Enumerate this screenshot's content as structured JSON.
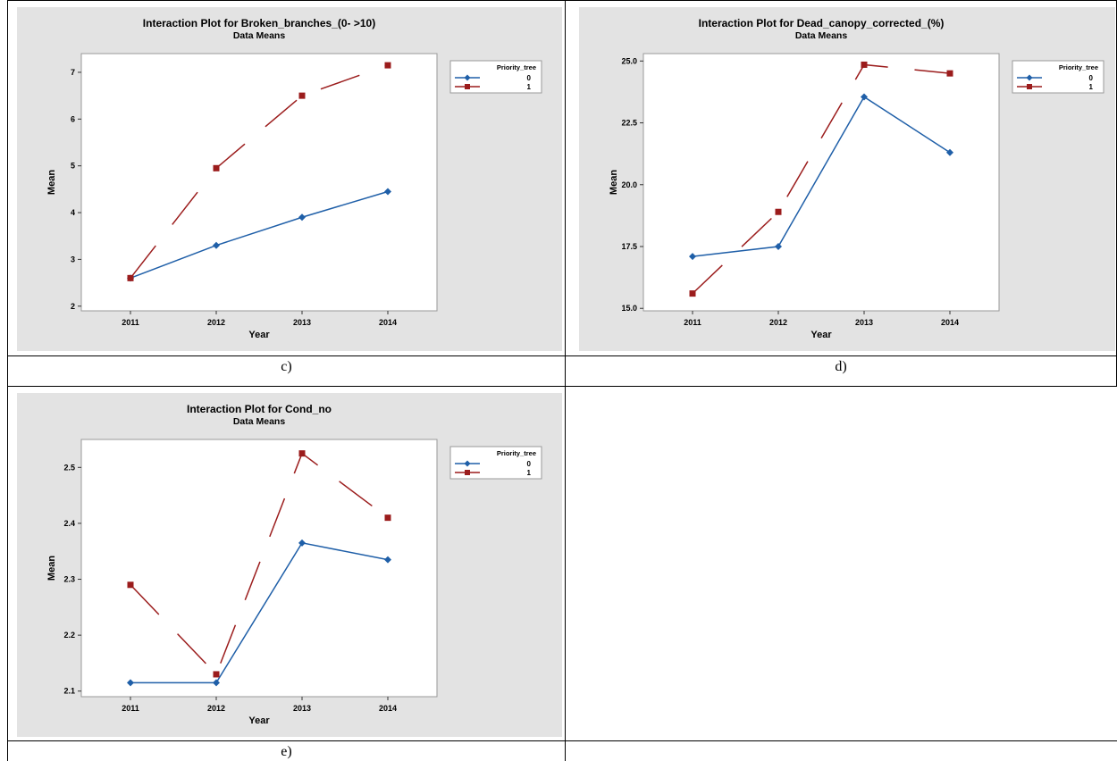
{
  "captions": {
    "c": "c)",
    "d": "d)",
    "e": "e)"
  },
  "chart_data": [
    {
      "type": "line",
      "title": "Interaction Plot for Broken_branches_(0- >10)",
      "subtitle": "Data Means",
      "xlabel": "Year",
      "ylabel": "Mean",
      "categories": [
        "2011",
        "2012",
        "2013",
        "2014"
      ],
      "ylim": [
        1.9,
        7.4
      ],
      "yticks": [
        2,
        3,
        4,
        5,
        6,
        7
      ],
      "ytick_labels": [
        "2",
        "3",
        "4",
        "5",
        "6",
        "7"
      ],
      "legend": {
        "title": "Priority_tree",
        "placement": "top-right"
      },
      "grid": false,
      "series": [
        {
          "name": "0",
          "values": [
            2.6,
            3.3,
            3.9,
            4.45
          ],
          "color": "#1f5fa8",
          "marker": "diamond",
          "line": "solid"
        },
        {
          "name": "1",
          "values": [
            2.6,
            4.95,
            6.5,
            7.15
          ],
          "color": "#9b1c1c",
          "marker": "square",
          "line": "dashed"
        }
      ]
    },
    {
      "type": "line",
      "title": "Interaction Plot for Dead_canopy_corrected_(%)",
      "subtitle": "Data Means",
      "xlabel": "Year",
      "ylabel": "Mean",
      "categories": [
        "2011",
        "2012",
        "2013",
        "2014"
      ],
      "ylim": [
        14.9,
        25.3
      ],
      "yticks": [
        15.0,
        17.5,
        20.0,
        22.5,
        25.0
      ],
      "ytick_labels": [
        "15.0",
        "17.5",
        "20.0",
        "22.5",
        "25.0"
      ],
      "legend": {
        "title": "Priority_tree",
        "placement": "top-right"
      },
      "grid": false,
      "series": [
        {
          "name": "0",
          "values": [
            17.1,
            17.5,
            23.55,
            21.3
          ],
          "color": "#1f5fa8",
          "marker": "diamond",
          "line": "solid"
        },
        {
          "name": "1",
          "values": [
            15.6,
            18.9,
            24.85,
            24.5
          ],
          "color": "#9b1c1c",
          "marker": "square",
          "line": "dashed"
        }
      ]
    },
    {
      "type": "line",
      "title": "Interaction Plot for Cond_no",
      "subtitle": "Data Means",
      "xlabel": "Year",
      "ylabel": "Mean",
      "categories": [
        "2011",
        "2012",
        "2013",
        "2014"
      ],
      "ylim": [
        2.09,
        2.55
      ],
      "yticks": [
        2.1,
        2.2,
        2.3,
        2.4,
        2.5
      ],
      "ytick_labels": [
        "2.1",
        "2.2",
        "2.3",
        "2.4",
        "2.5"
      ],
      "legend": {
        "title": "Priority_tree",
        "placement": "top-right"
      },
      "grid": false,
      "series": [
        {
          "name": "0",
          "values": [
            2.115,
            2.115,
            2.365,
            2.335
          ],
          "color": "#1f5fa8",
          "marker": "diamond",
          "line": "solid"
        },
        {
          "name": "1",
          "values": [
            2.29,
            2.13,
            2.525,
            2.41
          ],
          "color": "#9b1c1c",
          "marker": "square",
          "line": "dashed"
        }
      ]
    }
  ]
}
